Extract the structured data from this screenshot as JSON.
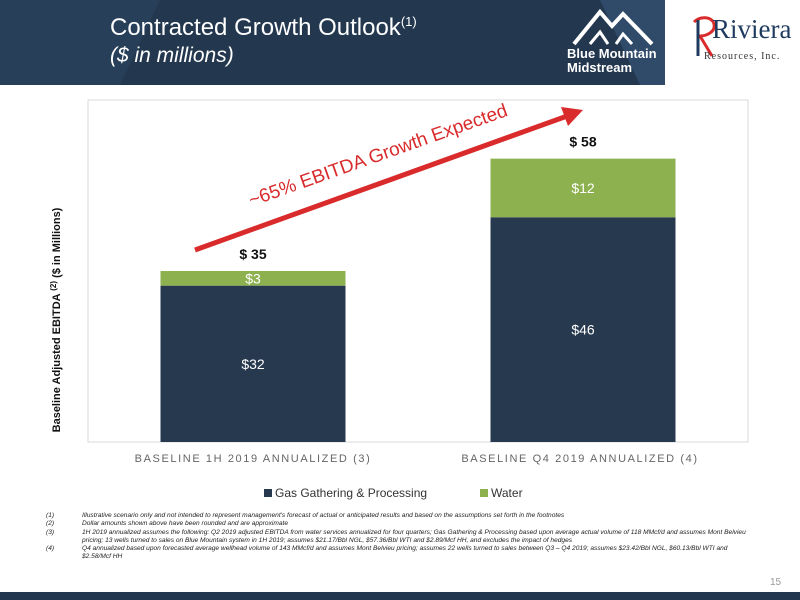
{
  "header": {
    "title": "Contracted Growth Outlook",
    "title_sup": "(1)",
    "subtitle": "($ in millions)",
    "logo_blue_mountain": "Blue Mountain Midstream",
    "logo_riviera_name": "Riviera",
    "logo_riviera_sub": "Resources, Inc."
  },
  "colors": {
    "header_dark": "#23384f",
    "gas": "#27394f",
    "water": "#8db14f",
    "arrow": "#d92b2b",
    "plot_border": "#d9d9d9"
  },
  "chart_data": {
    "type": "bar",
    "stacked": true,
    "categories": [
      "BASELINE 1H 2019 ANNUALIZED (3)",
      "BASELINE Q4 2019 ANNUALIZED (4)"
    ],
    "series": [
      {
        "name": "Gas Gathering & Processing",
        "values": [
          32,
          46
        ],
        "labels": [
          "$32",
          "$46"
        ]
      },
      {
        "name": "Water",
        "values": [
          3,
          12
        ],
        "labels": [
          "$3",
          "$12"
        ]
      }
    ],
    "totals": [
      35,
      58
    ],
    "total_labels": [
      "$ 35",
      "$ 58"
    ],
    "ylabel": "Baseline Adjusted EBITDA",
    "ylabel_sup": "(2)",
    "ylabel_unit": "($ in Millions)",
    "ylim": [
      0,
      70
    ],
    "annotation": "~65% EBITDA Growth Expected",
    "legend_position": "bottom",
    "grid": false
  },
  "footnotes": [
    {
      "num": "(1)",
      "text": "Illustrative scenario only and not intended to represent management's forecast of actual or anticipated results and based on the assumptions set forth in the footnotes"
    },
    {
      "num": "(2)",
      "text": "Dollar amounts shown above have been rounded and are approximate"
    },
    {
      "num": "(3)",
      "text": "1H 2019 annualized assumes the following: Q2 2019 adjusted EBITDA from water services annualized for four quarters; Gas Gathering & Processing based upon average actual volume of 118 MMcf/d and assumes Mont Belvieu pricing; 13 wells turned to sales on Blue Mountain system in 1H 2019; assumes $21.17/Bbl NGL, $57.36/Bbl WTI and $2.89/Mcf HH, and excludes the impact of hedges"
    },
    {
      "num": "(4)",
      "text": "Q4 annualized based upon forecasted average wellhead volume of 143 MMcf/d and assumes Mont Belvieu pricing; assumes 22 wells turned to sales between Q3 – Q4 2019; assumes $23.42/Bbl NGL, $60.13/Bbl WTI and $2.58/Mcf HH"
    }
  ],
  "page_number": "15"
}
